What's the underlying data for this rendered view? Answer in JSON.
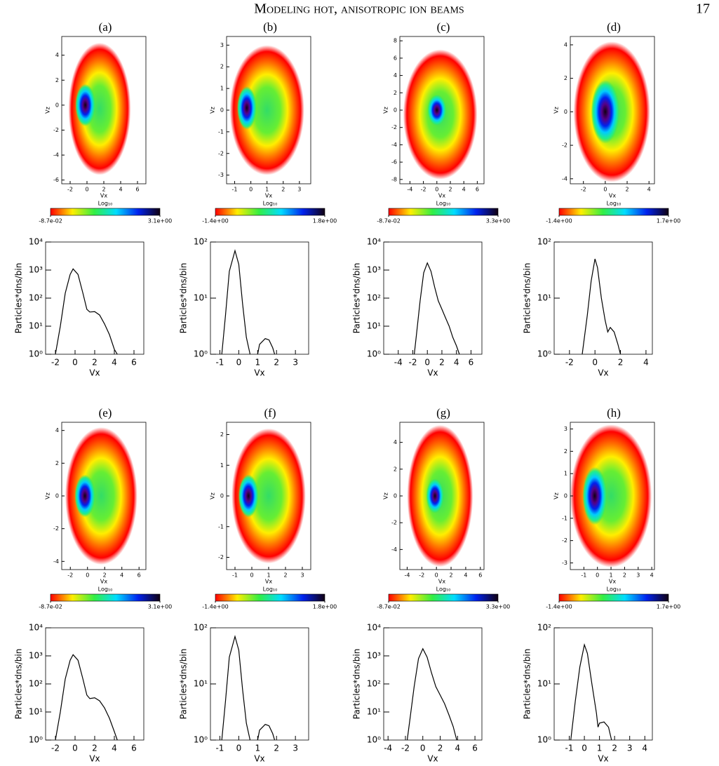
{
  "header": {
    "title": "Modeling hot, anisotropic ion beams",
    "page_number": "17"
  },
  "chart_data": [
    {
      "type": "density",
      "panel_label": "(a)",
      "xlabel": "Vx",
      "ylabel": "Vz",
      "xlim": [
        -3,
        7
      ],
      "xticks": [
        -2,
        0,
        2,
        4,
        6
      ],
      "ylim": [
        -6.3,
        5.5
      ],
      "yticks": [
        -6,
        -4,
        -2,
        0,
        2,
        4
      ],
      "components": [
        {
          "x": 1.5,
          "y": -0.3,
          "rx": 3.7,
          "ry": 5.3
        },
        {
          "x": -0.2,
          "y": 0,
          "rx": 1.2,
          "ry": 1.7
        }
      ],
      "colorbar": {
        "label": "Log₁₀",
        "ticks": [
          {
            "value": -0.087,
            "label": "-8.7e-02"
          },
          {
            "value": 3.1,
            "label": "3.1e+00"
          }
        ]
      }
    },
    {
      "type": "line",
      "xlabel": "Vx",
      "ylabel": "Particles*dns/bin",
      "log_y": true,
      "xlim": [
        -3,
        7
      ],
      "xticks": [
        -2,
        0,
        2,
        4,
        6
      ],
      "ylim": [
        1,
        10000
      ],
      "yticks": [
        {
          "value": 1,
          "label": "10⁰"
        },
        {
          "value": 10,
          "label": "10¹"
        },
        {
          "value": 100,
          "label": "10²"
        },
        {
          "value": 1000,
          "label": "10³"
        },
        {
          "value": 10000,
          "label": "10⁴"
        }
      ],
      "x": [
        -2,
        -1.5,
        -1,
        -0.5,
        -0.2,
        0.3,
        0.8,
        1.2,
        1.5,
        2,
        2.5,
        3,
        3.5,
        4,
        4.3
      ],
      "values": [
        1,
        10,
        150,
        700,
        1100,
        700,
        150,
        40,
        32,
        33,
        25,
        12,
        5,
        1.5,
        1
      ]
    },
    {
      "type": "density",
      "panel_label": "(b)",
      "xlabel": "Vx",
      "ylabel": "Vz",
      "xlim": [
        -1.5,
        3.7
      ],
      "xticks": [
        -1,
        0,
        1,
        2,
        3
      ],
      "ylim": [
        -3.4,
        3.4
      ],
      "yticks": [
        -3,
        -2,
        -1,
        0,
        1,
        2,
        3
      ],
      "components": [
        {
          "x": 1.0,
          "y": 0,
          "rx": 2.3,
          "ry": 3.0
        },
        {
          "x": -0.25,
          "y": 0.1,
          "rx": 0.6,
          "ry": 1.0
        }
      ],
      "colorbar": {
        "label": "Log₁₀",
        "ticks": [
          {
            "value": -1.4,
            "label": "-1.4e+00"
          },
          {
            "value": 1.8,
            "label": "1.8e+00"
          }
        ]
      }
    },
    {
      "type": "line",
      "xlabel": "Vx",
      "ylabel": "Particles*dns/bin",
      "log_y": true,
      "xlim": [
        -1.5,
        3.7
      ],
      "xticks": [
        -1,
        0,
        1,
        2,
        3
      ],
      "ylim": [
        1,
        100
      ],
      "yticks": [
        {
          "value": 1,
          "label": "10⁰"
        },
        {
          "value": 10,
          "label": "10¹"
        },
        {
          "value": 100,
          "label": "10²"
        }
      ],
      "x": [
        -0.9,
        -0.7,
        -0.5,
        -0.2,
        0,
        0.2,
        0.4,
        0.6,
        0.8,
        1,
        1.1,
        1.4,
        1.6,
        1.8,
        1.9
      ],
      "values": [
        1,
        5,
        30,
        70,
        40,
        8,
        2,
        1,
        null,
        1,
        1.5,
        1.9,
        1.8,
        1.3,
        1
      ]
    },
    {
      "type": "density",
      "panel_label": "(c)",
      "xlabel": "Vx",
      "ylabel": "Vz",
      "xlim": [
        -5.5,
        7
      ],
      "xticks": [
        -4,
        -2,
        0,
        2,
        4,
        6
      ],
      "ylim": [
        -8.5,
        8.5
      ],
      "yticks": [
        -8,
        -6,
        -4,
        -2,
        0,
        2,
        4,
        6,
        8
      ],
      "components": [
        {
          "x": 0.5,
          "y": -0.5,
          "rx": 5.5,
          "ry": 7.5
        },
        {
          "x": 0,
          "y": 0,
          "rx": 1.4,
          "ry": 1.8
        }
      ],
      "colorbar": {
        "label": "Log₁₀",
        "ticks": [
          {
            "value": -0.087,
            "label": "-8.7e-02"
          },
          {
            "value": 3.3,
            "label": "3.3e+00"
          }
        ]
      }
    },
    {
      "type": "line",
      "xlabel": "Vx",
      "ylabel": "Particles*dns/bin",
      "log_y": true,
      "xlim": [
        -6,
        7.5
      ],
      "xticks": [
        -4,
        -2,
        0,
        2,
        4,
        6
      ],
      "ylim": [
        1,
        10000
      ],
      "yticks": [
        {
          "value": 1,
          "label": "10⁰"
        },
        {
          "value": 10,
          "label": "10¹"
        },
        {
          "value": 100,
          "label": "10²"
        },
        {
          "value": 1000,
          "label": "10³"
        },
        {
          "value": 10000,
          "label": "10⁴"
        }
      ],
      "x": [
        -1.8,
        -1.5,
        -1,
        -0.5,
        0,
        0.5,
        1,
        1.5,
        2,
        2.5,
        3,
        3.5,
        4,
        4.4
      ],
      "values": [
        1,
        5,
        80,
        800,
        1800,
        900,
        250,
        80,
        40,
        20,
        10,
        4,
        2,
        1
      ]
    },
    {
      "type": "density",
      "panel_label": "(d)",
      "xlabel": "Vx",
      "ylabel": "Vz",
      "xlim": [
        -3.2,
        4.5
      ],
      "xticks": [
        -2,
        0,
        2,
        4
      ],
      "ylim": [
        -4.3,
        4.5
      ],
      "yticks": [
        -4,
        -2,
        0,
        2,
        4
      ],
      "components": [
        {
          "x": 0.6,
          "y": 0,
          "rx": 3.5,
          "ry": 4.2
        },
        {
          "x": 0,
          "y": 0,
          "rx": 1.3,
          "ry": 1.9
        }
      ],
      "colorbar": {
        "label": "Log₁₀",
        "ticks": [
          {
            "value": -1.4,
            "label": "-1.4e+00"
          },
          {
            "value": 1.7,
            "label": "1.7e+00"
          }
        ]
      }
    },
    {
      "type": "line",
      "xlabel": "Vx",
      "ylabel": "Particles*dns/bin",
      "log_y": true,
      "xlim": [
        -3.2,
        4.5
      ],
      "xticks": [
        -2,
        0,
        2,
        4
      ],
      "ylim": [
        1,
        100
      ],
      "yticks": [
        {
          "value": 1,
          "label": "10⁰"
        },
        {
          "value": 10,
          "label": "10¹"
        },
        {
          "value": 100,
          "label": "10²"
        }
      ],
      "x": [
        -1,
        -0.6,
        -0.3,
        0,
        0.2,
        0.5,
        0.8,
        1,
        1.2,
        1.5,
        1.8,
        2
      ],
      "values": [
        1,
        5,
        20,
        50,
        35,
        10,
        4,
        2.5,
        3,
        2.5,
        1.5,
        1
      ]
    },
    {
      "type": "density",
      "panel_label": "(e)",
      "xlabel": "Vx",
      "ylabel": "Vz",
      "xlim": [
        -3,
        6.8
      ],
      "xticks": [
        -2,
        0,
        2,
        4,
        6
      ],
      "ylim": [
        -4.5,
        4.5
      ],
      "yticks": [
        -4,
        -2,
        0,
        2,
        4
      ],
      "components": [
        {
          "x": 1.6,
          "y": 0,
          "rx": 4.2,
          "ry": 4.2
        },
        {
          "x": -0.3,
          "y": 0,
          "rx": 1.2,
          "ry": 1.3
        }
      ],
      "colorbar": {
        "label": "Log₁₀",
        "ticks": [
          {
            "value": -0.087,
            "label": "-8.7e-02"
          },
          {
            "value": 3.1,
            "label": "3.1e+00"
          }
        ]
      }
    },
    {
      "type": "line",
      "xlabel": "Vx",
      "ylabel": "Particles*dns/bin",
      "log_y": true,
      "xlim": [
        -3,
        7
      ],
      "xticks": [
        -2,
        0,
        2,
        4,
        6
      ],
      "ylim": [
        1,
        10000
      ],
      "yticks": [
        {
          "value": 1,
          "label": "10⁰"
        },
        {
          "value": 10,
          "label": "10¹"
        },
        {
          "value": 100,
          "label": "10²"
        },
        {
          "value": 1000,
          "label": "10³"
        },
        {
          "value": 10000,
          "label": "10⁴"
        }
      ],
      "x": [
        -2,
        -1.5,
        -1,
        -0.5,
        -0.2,
        0.3,
        0.8,
        1.2,
        1.5,
        2,
        2.5,
        3,
        3.5,
        4,
        4.3
      ],
      "values": [
        1,
        10,
        150,
        700,
        1100,
        700,
        150,
        40,
        30,
        32,
        25,
        14,
        6,
        2,
        1
      ]
    },
    {
      "type": "density",
      "panel_label": "(f)",
      "xlabel": "Vx",
      "ylabel": "Vz",
      "xlim": [
        -1.5,
        3.5
      ],
      "xticks": [
        -1,
        0,
        1,
        2,
        3
      ],
      "ylim": [
        -2.4,
        2.4
      ],
      "yticks": [
        -2,
        -1,
        0,
        1,
        2
      ],
      "components": [
        {
          "x": 1.0,
          "y": 0,
          "rx": 2.2,
          "ry": 2.2
        },
        {
          "x": -0.2,
          "y": 0,
          "rx": 0.6,
          "ry": 0.7
        }
      ],
      "colorbar": {
        "label": "Log₁₀",
        "ticks": [
          {
            "value": -1.4,
            "label": "-1.4e+00"
          },
          {
            "value": 1.8,
            "label": "1.8e+00"
          }
        ]
      }
    },
    {
      "type": "line",
      "xlabel": "Vx",
      "ylabel": "Particles*dns/bin",
      "log_y": true,
      "xlim": [
        -1.5,
        3.7
      ],
      "xticks": [
        -1,
        0,
        1,
        2,
        3
      ],
      "ylim": [
        1,
        100
      ],
      "yticks": [
        {
          "value": 1,
          "label": "10⁰"
        },
        {
          "value": 10,
          "label": "10¹"
        },
        {
          "value": 100,
          "label": "10²"
        }
      ],
      "x": [
        -0.9,
        -0.7,
        -0.5,
        -0.2,
        0,
        0.2,
        0.4,
        0.6,
        0.8,
        1,
        1.1,
        1.4,
        1.6,
        1.8,
        1.9
      ],
      "values": [
        1,
        5,
        30,
        70,
        40,
        8,
        2,
        1,
        null,
        1,
        1.5,
        1.9,
        1.8,
        1.3,
        1
      ]
    },
    {
      "type": "density",
      "panel_label": "(g)",
      "xlabel": "Vx",
      "ylabel": "Vz",
      "xlim": [
        -5,
        6.5
      ],
      "xticks": [
        -4,
        -2,
        0,
        2,
        4,
        6
      ],
      "ylim": [
        -5.5,
        5.5
      ],
      "yticks": [
        -4,
        -2,
        0,
        2,
        4
      ],
      "components": [
        {
          "x": 0.5,
          "y": 0,
          "rx": 4.5,
          "ry": 5.3
        },
        {
          "x": -0.2,
          "y": 0,
          "rx": 1.2,
          "ry": 1.3
        }
      ],
      "colorbar": {
        "label": "Log₁₀",
        "ticks": [
          {
            "value": -0.087,
            "label": "-8.7e-02"
          },
          {
            "value": 3.3,
            "label": "3.3e+00"
          }
        ]
      }
    },
    {
      "type": "line",
      "xlabel": "Vx",
      "ylabel": "Particles*dns/bin",
      "log_y": true,
      "xlim": [
        -4.5,
        6.8
      ],
      "xticks": [
        -4,
        -2,
        0,
        2,
        4,
        6
      ],
      "ylim": [
        1,
        10000
      ],
      "yticks": [
        {
          "value": 1,
          "label": "10⁰"
        },
        {
          "value": 10,
          "label": "10¹"
        },
        {
          "value": 100,
          "label": "10²"
        },
        {
          "value": 1000,
          "label": "10³"
        },
        {
          "value": 10000,
          "label": "10⁴"
        }
      ],
      "x": [
        -1.8,
        -1.5,
        -1,
        -0.5,
        0,
        0.5,
        1,
        1.5,
        2,
        2.5,
        3,
        3.5,
        3.9
      ],
      "values": [
        1,
        5,
        80,
        800,
        1800,
        900,
        250,
        80,
        40,
        20,
        8,
        3,
        1
      ]
    },
    {
      "type": "density",
      "panel_label": "(h)",
      "xlabel": "Vx",
      "ylabel": "Vz",
      "xlim": [
        -2,
        4.2
      ],
      "xticks": [
        -1,
        0,
        1,
        2,
        3,
        4
      ],
      "ylim": [
        -3.3,
        3.3
      ],
      "yticks": [
        -3,
        -2,
        -1,
        0,
        1,
        2,
        3
      ],
      "components": [
        {
          "x": 1.0,
          "y": 0,
          "rx": 3.0,
          "ry": 3.2
        },
        {
          "x": -0.2,
          "y": 0,
          "rx": 0.9,
          "ry": 1.3
        }
      ],
      "colorbar": {
        "label": "Log₁₀",
        "ticks": [
          {
            "value": -1.4,
            "label": "-1.4e+00"
          },
          {
            "value": 1.7,
            "label": "1.7e+00"
          }
        ]
      }
    },
    {
      "type": "line",
      "xlabel": "Vx",
      "ylabel": "Particles*dns/bin",
      "log_y": true,
      "xlim": [
        -2,
        4.5
      ],
      "xticks": [
        -1,
        0,
        1,
        2,
        3,
        4
      ],
      "ylim": [
        1,
        100
      ],
      "yticks": [
        {
          "value": 1,
          "label": "10⁰"
        },
        {
          "value": 10,
          "label": "10¹"
        },
        {
          "value": 100,
          "label": "10²"
        }
      ],
      "x": [
        -0.9,
        -0.6,
        -0.3,
        0,
        0.2,
        0.5,
        0.8,
        0.9,
        1,
        1.3,
        1.6,
        1.8
      ],
      "values": [
        1,
        5,
        20,
        50,
        35,
        10,
        3,
        1.7,
        2,
        2.1,
        1.7,
        1
      ]
    }
  ]
}
